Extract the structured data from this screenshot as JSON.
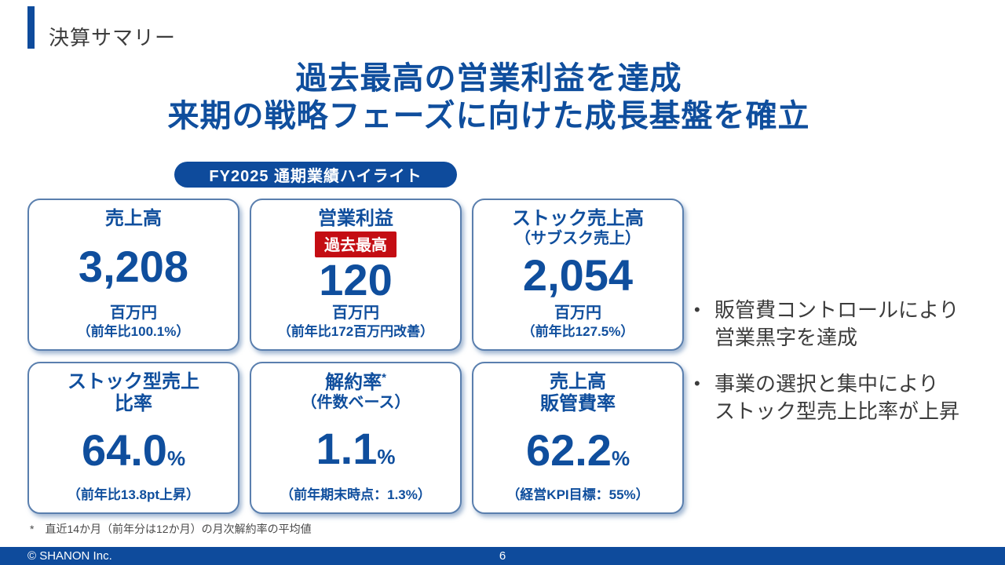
{
  "slide": {
    "header_title": "決算サマリー",
    "main_title_line1": "過去最高の営業利益を達成",
    "main_title_line2": "来期の戦略フェーズに向けた成長基盤を確立",
    "highlight_badge": "FY2025 通期業績ハイライト"
  },
  "cards": [
    {
      "title1": "売上高",
      "value": "3,208",
      "unit": "百万円",
      "note": "（前年比100.1%）"
    },
    {
      "title1": "営業利益",
      "badge": "過去最高",
      "value": "120",
      "unit": "百万円",
      "note": "（前年比172百万円改善）"
    },
    {
      "title1": "ストック売上高",
      "title2": "（サブスク売上）",
      "value": "2,054",
      "unit": "百万円",
      "note": "（前年比127.5%）"
    },
    {
      "title1": "ストック型売上",
      "title2": "比率",
      "value": "64.0",
      "suffix": "%",
      "note": "（前年比13.8pt上昇）"
    },
    {
      "title1": "解約率",
      "title1_sup": "*",
      "title2": "（件数ベース）",
      "value": "1.1",
      "suffix": "%",
      "note": "（前年期末時点：1.3%）"
    },
    {
      "title1": "売上高",
      "title2": "販管費率",
      "value": "62.2",
      "suffix": "%",
      "note": "（経営KPI目標：55%）"
    }
  ],
  "bullets": [
    {
      "marker": "•",
      "line1": "販管費コントロールにより",
      "line2": "営業黒字を達成"
    },
    {
      "marker": "•",
      "line1": "事業の選択と集中により",
      "line2": "ストック型売上比率が上昇"
    }
  ],
  "footnote": "*　直近14か月（前年分は12か月）の月次解約率の平均値",
  "footer": {
    "copyright": "© SHANON Inc.",
    "page_number": "6"
  },
  "colors": {
    "primary_blue": "#0f4e9d",
    "bar_blue": "#0e4b9c",
    "card_border": "#5a7fae",
    "record_red": "#c40d13",
    "text_gray": "#3c3c3c"
  }
}
